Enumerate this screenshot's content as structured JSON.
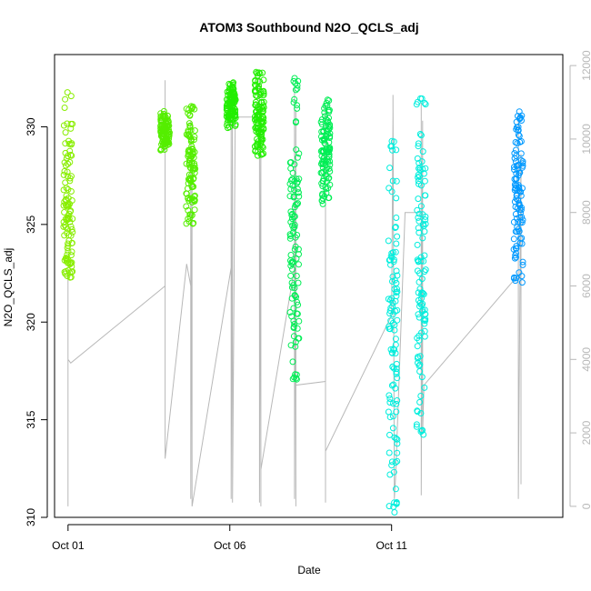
{
  "chart_data": {
    "type": "scatter",
    "title": "ATOM3 Southbound N2O_QCLS_adj",
    "xlabel": "Date",
    "ylabel": "N2O_QCLS_adj",
    "x_unit": "days",
    "xlim": [
      "2017-09-30 14:00",
      "2017-10-16 07:00"
    ],
    "ylim": [
      310,
      333.7
    ],
    "y_ticks": [
      310,
      315,
      320,
      325,
      330
    ],
    "x_ticks": [
      {
        "date": "2017-10-01",
        "label": "Oct 01"
      },
      {
        "date": "2017-10-06",
        "label": "Oct 06"
      },
      {
        "date": "2017-10-11",
        "label": "Oct 11"
      }
    ],
    "y2": {
      "label": "",
      "color": "#b8b8b8",
      "ylim": [
        -300,
        12300
      ],
      "ticks": [
        0,
        2000,
        4000,
        6000,
        8000,
        10000,
        12000
      ],
      "description": "altitude trace (gray line, right axis)"
    },
    "series": [
      {
        "color": "#88ee00",
        "segments": [
          {
            "x": "2017-10-01 00:00",
            "ymin": 322.0,
            "ymax": 331.9,
            "low_cluster": [
              322.2,
              326.0
            ]
          }
        ]
      },
      {
        "color": "#55ee00",
        "segments": [
          {
            "x": "2017-10-04 00:00",
            "ymin": 328.7,
            "ymax": 330.8
          },
          {
            "x": "2017-10-04 19:00",
            "ymin": 325.0,
            "ymax": 331.2
          }
        ]
      },
      {
        "color": "#22ee00",
        "segments": [
          {
            "x": "2017-10-06 01:00",
            "ymin": 329.9,
            "ymax": 332.3
          },
          {
            "x": "2017-10-06 22:00",
            "ymin": 328.4,
            "ymax": 332.9
          }
        ]
      },
      {
        "color": "#00ee55",
        "segments": [
          {
            "x": "2017-10-08 00:00",
            "ymin": 317.0,
            "ymax": 332.5
          },
          {
            "x": "2017-10-08 23:00",
            "ymin": 326.0,
            "ymax": 331.4
          }
        ]
      },
      {
        "color": "#00eedd",
        "segments": [
          {
            "x": "2017-10-11 01:00",
            "ymin": 310.2,
            "ymax": 329.3
          },
          {
            "x": "2017-10-11 22:00",
            "ymin": 314.2,
            "ymax": 331.5
          }
        ]
      },
      {
        "color": "#0099ff",
        "segments": [
          {
            "x": "2017-10-14 22:00",
            "ymin": 322.0,
            "ymax": 330.8
          }
        ]
      }
    ],
    "altitude_trace": [
      [
        "2017-10-01 00:00",
        0
      ],
      [
        "2017-10-01 00:00",
        6300
      ],
      [
        "2017-10-01 00:00",
        300
      ],
      [
        "2017-10-01 00:00",
        4000
      ],
      [
        "2017-10-01 02:00",
        3900
      ],
      [
        "2017-10-04 00:00",
        6000
      ],
      [
        "2017-10-04 00:00",
        11600
      ],
      [
        "2017-10-04 00:00",
        1300
      ],
      [
        "2017-10-04 16:00",
        6600
      ],
      [
        "2017-10-04 19:00",
        6000
      ],
      [
        "2017-10-04 19:00",
        10500
      ],
      [
        "2017-10-04 19:00",
        200
      ],
      [
        "2017-10-04 20:00",
        9500
      ],
      [
        "2017-10-04 20:00",
        0
      ],
      [
        "2017-10-06 01:00",
        6500
      ],
      [
        "2017-10-06 01:00",
        11300
      ],
      [
        "2017-10-06 01:00",
        200
      ],
      [
        "2017-10-06 02:00",
        10900
      ],
      [
        "2017-10-06 02:00",
        100
      ],
      [
        "2017-10-06 04:00",
        10600
      ],
      [
        "2017-10-06 22:00",
        10600
      ],
      [
        "2017-10-06 22:00",
        11800
      ],
      [
        "2017-10-06 22:00",
        100
      ],
      [
        "2017-10-06 23:00",
        10800
      ],
      [
        "2017-10-06 23:00",
        0
      ],
      [
        "2017-10-06 23:00",
        6000
      ],
      [
        "2017-10-06 23:00",
        1000
      ],
      [
        "2017-10-08 00:00",
        6500
      ],
      [
        "2017-10-08 00:00",
        11400
      ],
      [
        "2017-10-08 00:00",
        200
      ],
      [
        "2017-10-08 01:00",
        10800
      ],
      [
        "2017-10-08 01:00",
        0
      ],
      [
        "2017-10-08 01:00",
        3300
      ],
      [
        "2017-10-08 23:00",
        3400
      ],
      [
        "2017-10-08 23:00",
        10900
      ],
      [
        "2017-10-08 23:00",
        100
      ],
      [
        "2017-10-08 23:00",
        6100
      ],
      [
        "2017-10-08 23:00",
        1500
      ],
      [
        "2017-10-11 00:00",
        5200
      ],
      [
        "2017-10-11 01:00",
        10600
      ],
      [
        "2017-10-11 01:00",
        11200
      ],
      [
        "2017-10-11 02:00",
        200
      ],
      [
        "2017-10-11 03:00",
        800
      ],
      [
        "2017-10-11 10:00",
        8000
      ],
      [
        "2017-10-11 22:00",
        8000
      ],
      [
        "2017-10-11 22:00",
        11000
      ],
      [
        "2017-10-11 22:00",
        300
      ],
      [
        "2017-10-11 23:00",
        10500
      ],
      [
        "2017-10-11 23:00",
        2000
      ],
      [
        "2017-10-12 00:00",
        3300
      ],
      [
        "2017-10-14 22:00",
        6300
      ],
      [
        "2017-10-14 22:00",
        10700
      ],
      [
        "2017-10-14 22:00",
        200
      ],
      [
        "2017-10-15 00:00",
        9600
      ],
      [
        "2017-10-15 00:00",
        600
      ]
    ]
  }
}
